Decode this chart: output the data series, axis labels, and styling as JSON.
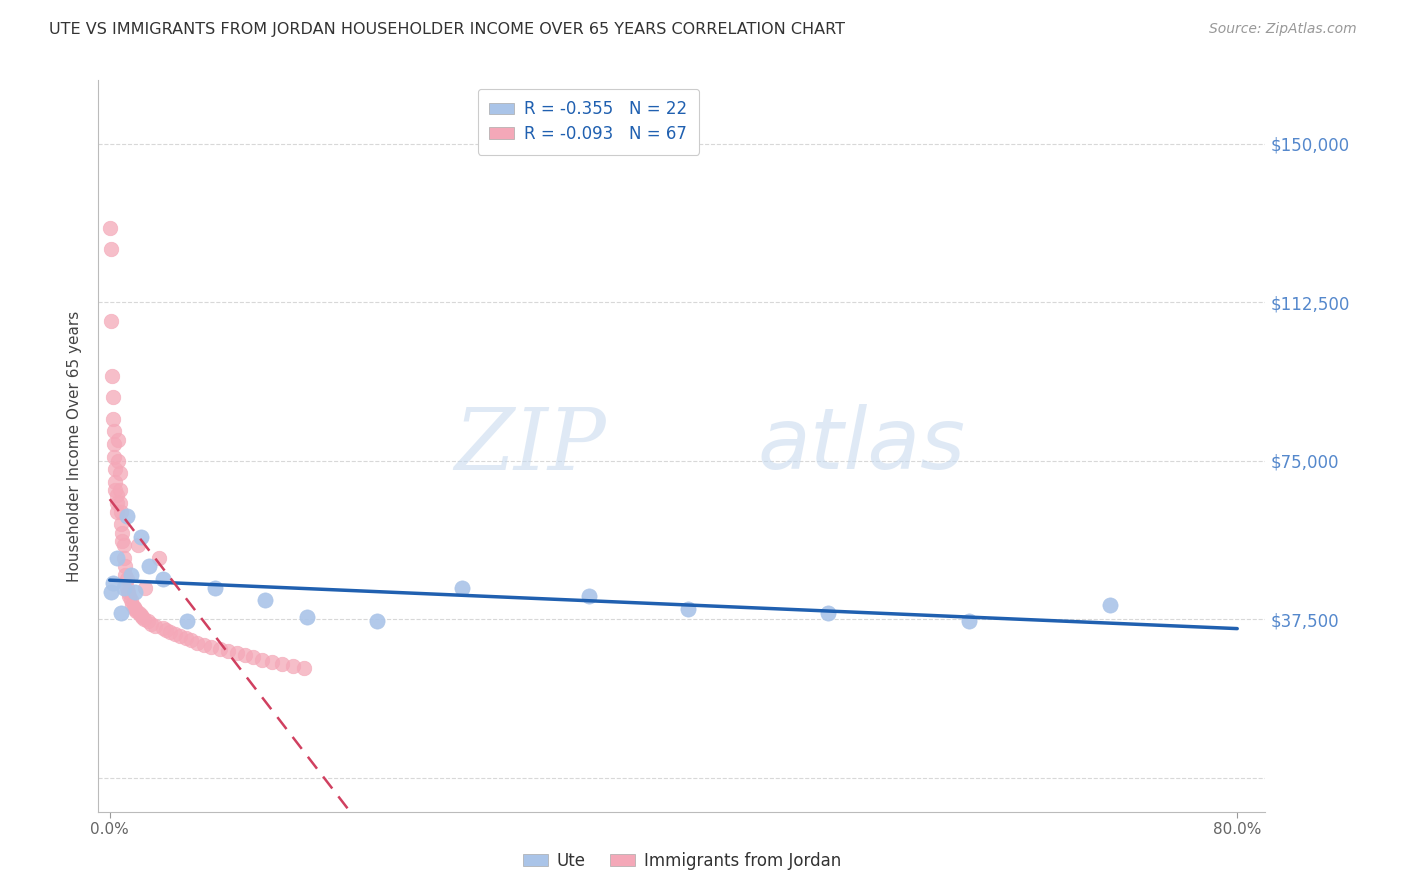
{
  "title": "UTE VS IMMIGRANTS FROM JORDAN HOUSEHOLDER INCOME OVER 65 YEARS CORRELATION CHART",
  "source": "Source: ZipAtlas.com",
  "ylabel": "Householder Income Over 65 years",
  "watermark_zip": "ZIP",
  "watermark_atlas": "atlas",
  "legend_ute_r": "R = -0.355",
  "legend_ute_n": "N = 22",
  "legend_jordan_r": "R = -0.093",
  "legend_jordan_n": "N = 67",
  "ute_color": "#aac4e8",
  "jordan_color": "#f4a8b8",
  "ute_line_color": "#2060b0",
  "jordan_line_color": "#d04060",
  "background_color": "#ffffff",
  "grid_color": "#d8d8d8",
  "ytick_color": "#5588cc",
  "yticks": [
    0,
    37500,
    75000,
    112500,
    150000
  ],
  "xlim": [
    -0.008,
    0.82
  ],
  "ylim": [
    -8000,
    165000
  ],
  "ute_x": [
    0.001,
    0.002,
    0.005,
    0.008,
    0.01,
    0.012,
    0.015,
    0.018,
    0.022,
    0.028,
    0.038,
    0.055,
    0.075,
    0.11,
    0.14,
    0.19,
    0.25,
    0.34,
    0.41,
    0.51,
    0.61,
    0.71
  ],
  "ute_y": [
    44000,
    46000,
    52000,
    39000,
    45000,
    62000,
    48000,
    44000,
    57000,
    50000,
    47000,
    37000,
    45000,
    42000,
    38000,
    37000,
    45000,
    43000,
    40000,
    39000,
    37000,
    41000
  ],
  "jordan_x": [
    0.0005,
    0.001,
    0.001,
    0.0015,
    0.002,
    0.002,
    0.003,
    0.003,
    0.003,
    0.004,
    0.004,
    0.004,
    0.005,
    0.005,
    0.005,
    0.006,
    0.006,
    0.007,
    0.007,
    0.007,
    0.008,
    0.008,
    0.009,
    0.009,
    0.01,
    0.01,
    0.011,
    0.011,
    0.012,
    0.012,
    0.013,
    0.014,
    0.015,
    0.016,
    0.017,
    0.018,
    0.019,
    0.02,
    0.021,
    0.022,
    0.023,
    0.024,
    0.025,
    0.027,
    0.029,
    0.032,
    0.035,
    0.038,
    0.04,
    0.043,
    0.046,
    0.05,
    0.054,
    0.058,
    0.062,
    0.067,
    0.072,
    0.078,
    0.084,
    0.09,
    0.096,
    0.102,
    0.108,
    0.115,
    0.122,
    0.13,
    0.138
  ],
  "jordan_y": [
    130000,
    125000,
    108000,
    95000,
    90000,
    85000,
    82000,
    79000,
    76000,
    73000,
    70000,
    68000,
    67000,
    65000,
    63000,
    80000,
    75000,
    72000,
    68000,
    65000,
    63000,
    60000,
    58000,
    56000,
    55000,
    52000,
    50000,
    48000,
    47000,
    45000,
    44000,
    43000,
    42000,
    41000,
    40500,
    40000,
    39500,
    55000,
    39000,
    38500,
    38000,
    37500,
    45000,
    37000,
    36500,
    36000,
    52000,
    35500,
    35000,
    34500,
    34000,
    33500,
    33000,
    32500,
    32000,
    31500,
    31000,
    30500,
    30000,
    29500,
    29000,
    28500,
    28000,
    27500,
    27000,
    26500,
    26000
  ]
}
